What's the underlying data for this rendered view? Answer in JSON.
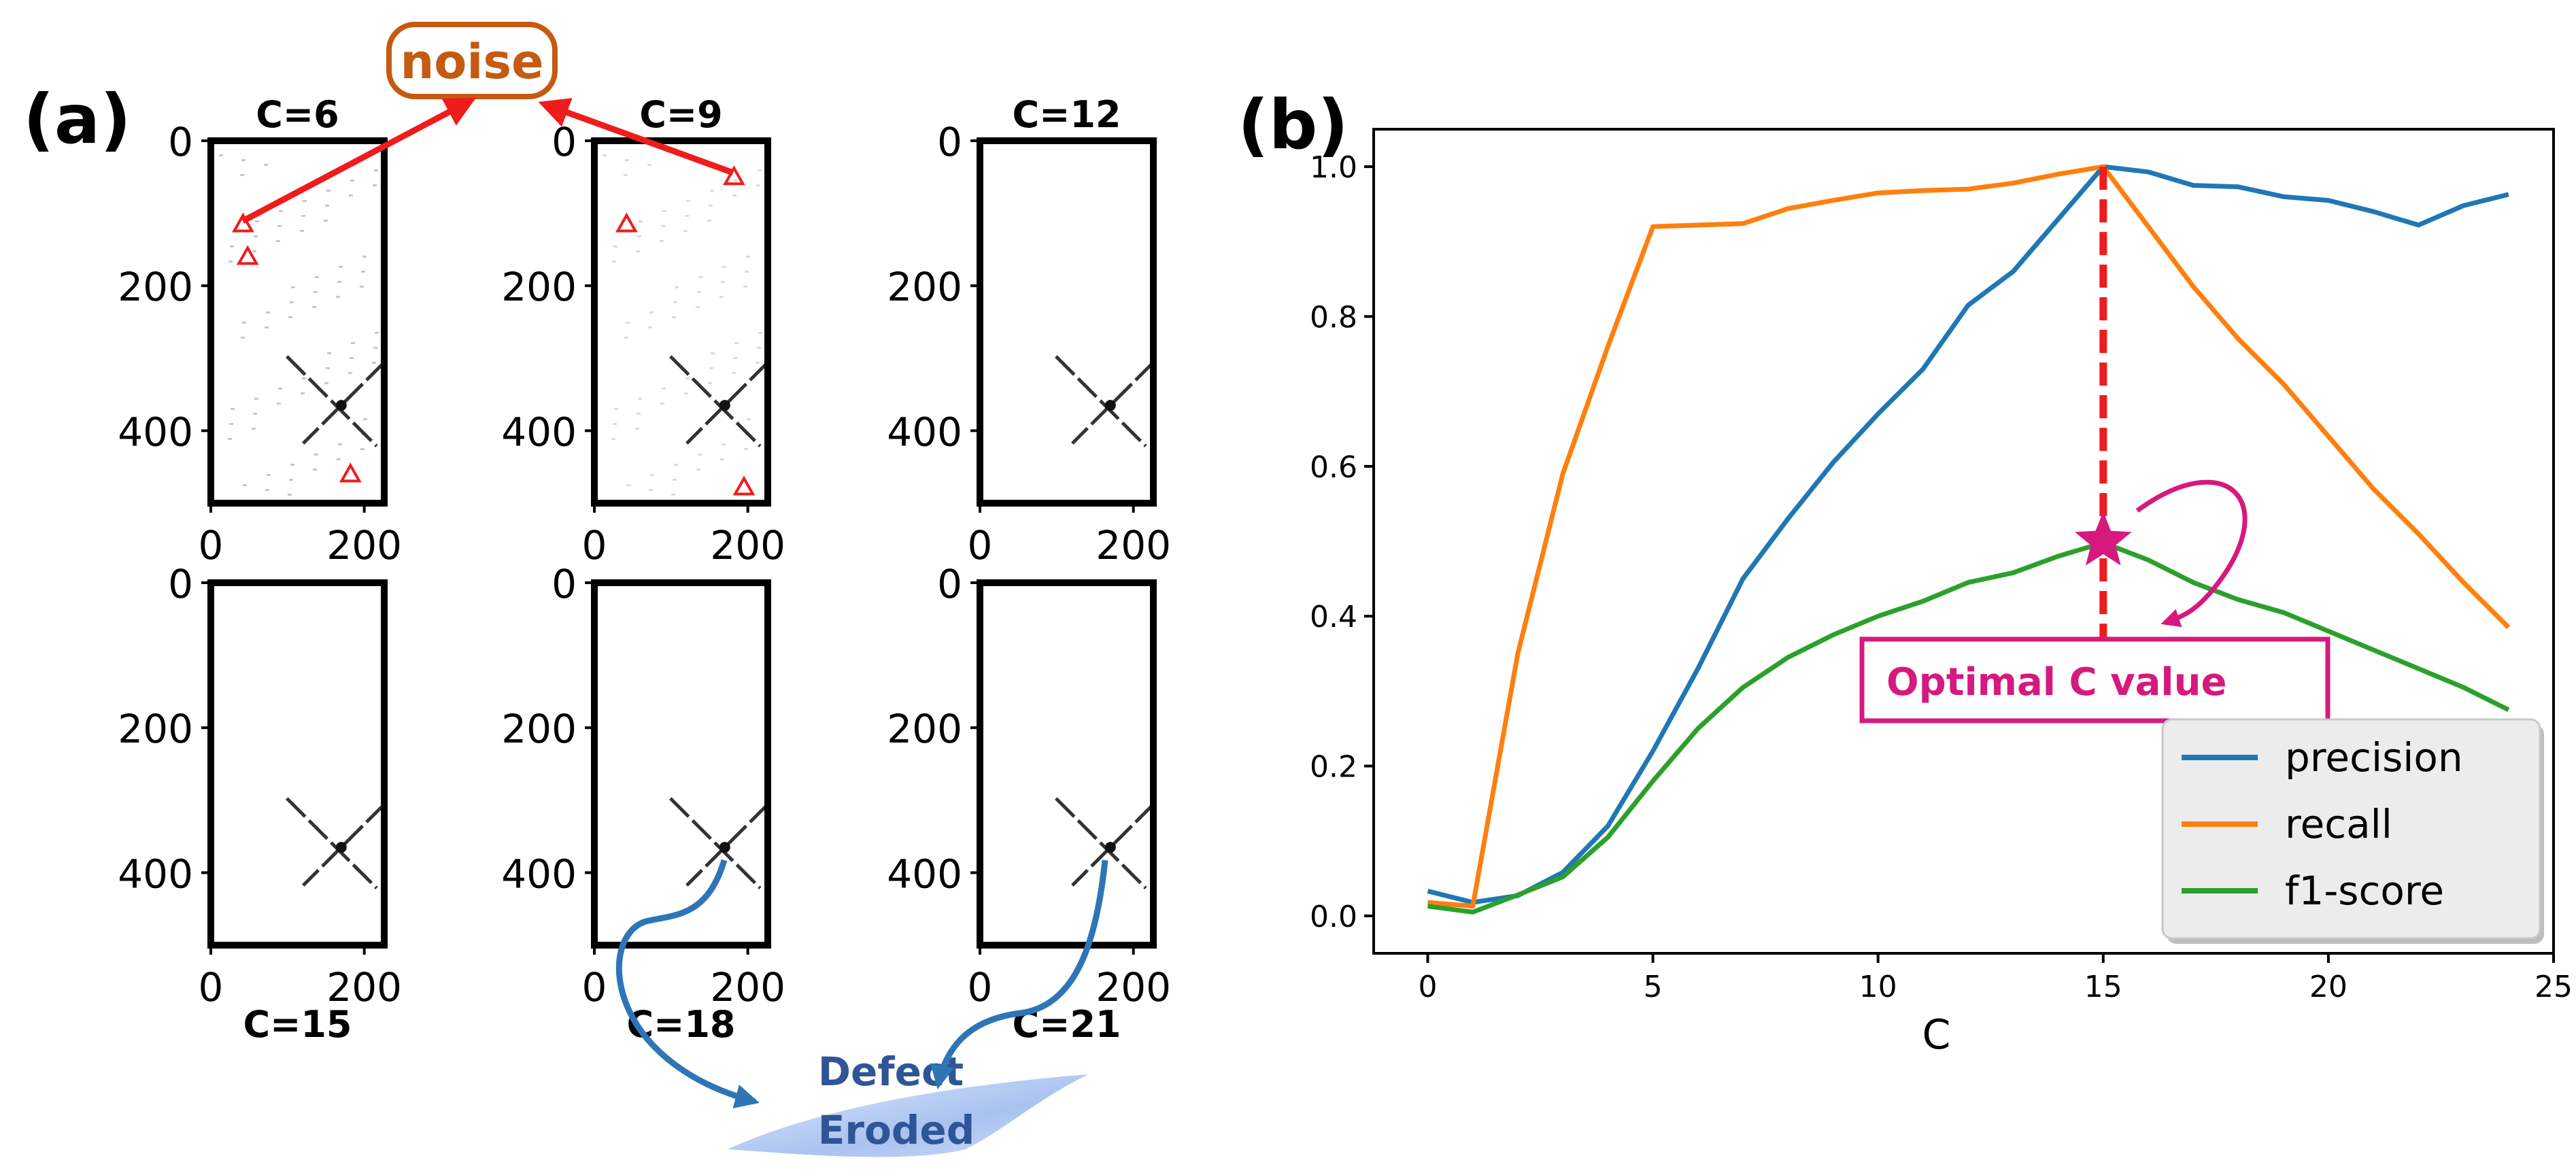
{
  "colors": {
    "precision": "#1f77b4",
    "recall": "#ff7f0e",
    "f1": "#2ca02c",
    "noise_arrow": "#ee1c1c",
    "noise_box": "#c55a11",
    "annotation": "#d6197e",
    "defect_arrow": "#2e75b6",
    "defect_text": "#2f5597"
  },
  "panel_a": {
    "label": "(a)",
    "noise_label": "noise",
    "defect_label_line1": "Defect",
    "defect_label_line2": "Eroded",
    "x_ticks": [
      "0",
      "200"
    ],
    "y_ticks": [
      "0",
      "200",
      "400"
    ],
    "subplots": [
      {
        "title": "C=6",
        "noise_markers": 3
      },
      {
        "title": "C=9",
        "noise_markers": 3
      },
      {
        "title": "C=12",
        "noise_markers": 0
      },
      {
        "title": "C=15",
        "noise_markers": 0
      },
      {
        "title": "C=18",
        "noise_markers": 0
      },
      {
        "title": "C=21",
        "noise_markers": 0
      }
    ]
  },
  "panel_b": {
    "label": "(b)",
    "annotation": "Optimal C value",
    "optimal_c": 15,
    "optimal_f1": 0.5
  },
  "chart_data": {
    "type": "line",
    "title": "",
    "xlabel": "C",
    "ylabel": "",
    "xlim": [
      -1.2,
      25
    ],
    "ylim": [
      -0.05,
      1.05
    ],
    "xticks": [
      0,
      5,
      10,
      15,
      20,
      25
    ],
    "yticks": [
      0.0,
      0.2,
      0.4,
      0.6,
      0.8,
      1.0
    ],
    "legend": "lower-right",
    "x": [
      0,
      1,
      2,
      3,
      4,
      5,
      6,
      7,
      8,
      9,
      10,
      11,
      12,
      13,
      14,
      15,
      16,
      17,
      18,
      19,
      20,
      21,
      22,
      23,
      24
    ],
    "series": [
      {
        "name": "precision",
        "values": [
          0.033,
          0.018,
          0.027,
          0.058,
          0.12,
          0.22,
          0.33,
          0.45,
          0.53,
          0.605,
          0.67,
          0.73,
          0.815,
          0.86,
          0.93,
          1.0,
          0.993,
          0.975,
          0.973,
          0.96,
          0.955,
          0.94,
          0.922,
          0.948,
          0.963
        ]
      },
      {
        "name": "recall",
        "values": [
          0.018,
          0.013,
          0.35,
          0.59,
          0.76,
          0.92,
          0.922,
          0.924,
          0.944,
          0.955,
          0.965,
          0.968,
          0.97,
          0.978,
          0.99,
          1.0,
          0.92,
          0.84,
          0.77,
          0.71,
          0.64,
          0.57,
          0.51,
          0.445,
          0.385
        ]
      },
      {
        "name": "f1-score",
        "values": [
          0.013,
          0.005,
          0.028,
          0.052,
          0.105,
          0.18,
          0.25,
          0.305,
          0.345,
          0.375,
          0.4,
          0.42,
          0.445,
          0.458,
          0.48,
          0.498,
          0.475,
          0.445,
          0.422,
          0.405,
          0.38,
          0.355,
          0.33,
          0.305,
          0.275
        ]
      }
    ]
  }
}
